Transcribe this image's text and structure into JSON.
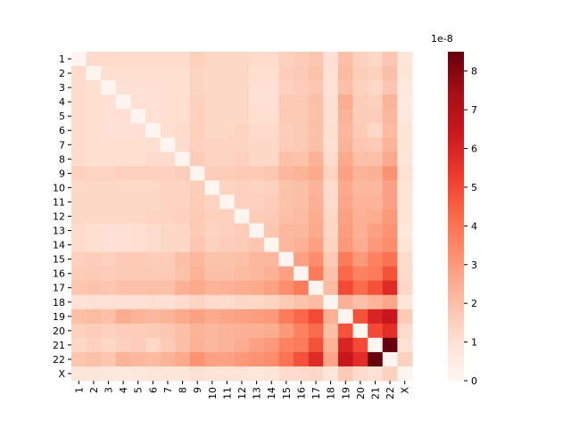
{
  "chart_data": {
    "type": "heatmap",
    "xcategories": [
      "1",
      "2",
      "3",
      "4",
      "5",
      "6",
      "7",
      "8",
      "9",
      "10",
      "11",
      "12",
      "13",
      "14",
      "15",
      "16",
      "17",
      "18",
      "19",
      "20",
      "21",
      "22",
      "X"
    ],
    "ycategories": [
      "1",
      "2",
      "3",
      "4",
      "5",
      "6",
      "7",
      "8",
      "9",
      "10",
      "11",
      "12",
      "13",
      "14",
      "15",
      "16",
      "17",
      "18",
      "19",
      "20",
      "21",
      "22",
      "X"
    ],
    "values": [
      [
        0,
        1.2,
        1.2,
        1.2,
        1.2,
        1.2,
        1.2,
        1.2,
        1.5,
        1.3,
        1.3,
        1.3,
        1.2,
        1.2,
        1.5,
        1.6,
        1.8,
        1.0,
        2.0,
        1.5,
        1.3,
        1.8,
        0.8
      ],
      [
        1.2,
        0,
        1.1,
        1.1,
        1.1,
        1.1,
        1.1,
        1.1,
        1.4,
        1.3,
        1.3,
        1.3,
        1.1,
        1.1,
        1.6,
        1.7,
        1.9,
        1.0,
        2.1,
        1.6,
        1.5,
        2.0,
        0.8
      ],
      [
        1.2,
        1.1,
        0,
        1.0,
        1.0,
        1.0,
        1.1,
        1.1,
        1.4,
        1.3,
        1.3,
        1.3,
        1.0,
        1.0,
        1.5,
        1.6,
        1.8,
        1.0,
        2.0,
        1.5,
        1.3,
        1.8,
        0.7
      ],
      [
        1.2,
        1.1,
        1.0,
        0,
        1.0,
        1.0,
        1.1,
        1.1,
        1.5,
        1.3,
        1.3,
        1.3,
        1.0,
        1.0,
        1.7,
        1.7,
        2.0,
        1.0,
        2.5,
        1.6,
        1.5,
        2.3,
        0.6
      ],
      [
        1.2,
        1.1,
        1.0,
        1.0,
        0,
        1.0,
        1.1,
        1.1,
        1.5,
        1.3,
        1.3,
        1.3,
        1.1,
        1.1,
        1.7,
        1.7,
        2.0,
        1.0,
        2.3,
        1.6,
        1.6,
        2.2,
        0.7
      ],
      [
        1.2,
        1.1,
        1.0,
        1.0,
        1.0,
        0,
        1.1,
        1.2,
        1.5,
        1.3,
        1.3,
        1.4,
        1.2,
        1.2,
        1.6,
        1.7,
        2.0,
        1.1,
        2.2,
        1.7,
        1.3,
        2.1,
        0.8
      ],
      [
        1.2,
        1.1,
        1.1,
        1.1,
        1.1,
        1.1,
        0,
        1.2,
        1.5,
        1.4,
        1.4,
        1.4,
        1.3,
        1.3,
        1.6,
        1.7,
        2.0,
        1.0,
        2.3,
        1.8,
        1.7,
        2.3,
        0.8
      ],
      [
        1.2,
        1.1,
        1.1,
        1.1,
        1.1,
        1.2,
        1.2,
        0,
        1.6,
        1.4,
        1.4,
        1.5,
        1.3,
        1.3,
        2.0,
        1.9,
        2.4,
        1.2,
        2.6,
        2.0,
        2.0,
        2.6,
        0.8
      ],
      [
        1.5,
        1.4,
        1.4,
        1.5,
        1.5,
        1.5,
        1.5,
        1.6,
        0,
        1.6,
        1.6,
        1.7,
        1.7,
        1.8,
        2.2,
        2.3,
        2.6,
        1.4,
        2.8,
        2.3,
        2.4,
        3.2,
        1.0
      ],
      [
        1.3,
        1.3,
        1.3,
        1.3,
        1.3,
        1.3,
        1.4,
        1.4,
        1.6,
        0,
        1.4,
        1.5,
        1.4,
        1.5,
        1.9,
        2.0,
        2.3,
        1.2,
        2.6,
        2.2,
        2.2,
        2.8,
        0.9
      ],
      [
        1.3,
        1.3,
        1.3,
        1.3,
        1.3,
        1.3,
        1.4,
        1.4,
        1.6,
        1.4,
        0,
        1.5,
        1.5,
        1.6,
        1.9,
        2.0,
        2.4,
        1.2,
        2.7,
        2.3,
        2.3,
        2.8,
        0.9
      ],
      [
        1.3,
        1.3,
        1.3,
        1.3,
        1.3,
        1.4,
        1.4,
        1.5,
        1.7,
        1.5,
        1.5,
        0,
        1.6,
        1.7,
        2.0,
        2.1,
        2.5,
        1.3,
        2.8,
        2.4,
        2.5,
        3.0,
        0.9
      ],
      [
        1.2,
        1.1,
        1.0,
        1.0,
        1.1,
        1.2,
        1.3,
        1.3,
        1.7,
        1.4,
        1.5,
        1.6,
        0,
        1.8,
        2.2,
        2.2,
        2.6,
        1.3,
        2.9,
        2.4,
        2.8,
        3.2,
        0.7
      ],
      [
        1.2,
        1.1,
        1.0,
        1.0,
        1.1,
        1.2,
        1.3,
        1.3,
        1.8,
        1.5,
        1.6,
        1.7,
        1.8,
        0,
        2.2,
        2.4,
        2.8,
        1.4,
        3.0,
        2.5,
        3.0,
        3.3,
        0.8
      ],
      [
        1.5,
        1.6,
        1.5,
        1.7,
        1.7,
        1.6,
        1.6,
        2.0,
        2.2,
        1.9,
        1.9,
        2.0,
        2.2,
        2.2,
        0,
        2.8,
        3.3,
        1.7,
        3.8,
        3.0,
        3.6,
        4.0,
        1.2
      ],
      [
        1.6,
        1.7,
        1.6,
        1.7,
        1.7,
        1.7,
        1.7,
        1.9,
        2.3,
        2.0,
        2.0,
        2.1,
        2.2,
        2.4,
        2.8,
        0,
        3.8,
        1.9,
        4.3,
        3.6,
        3.8,
        4.8,
        1.2
      ],
      [
        1.8,
        1.9,
        1.8,
        2.0,
        2.0,
        2.0,
        2.0,
        2.4,
        2.6,
        2.3,
        2.4,
        2.5,
        2.6,
        2.8,
        3.3,
        3.8,
        0,
        2.1,
        5.0,
        4.2,
        4.8,
        5.8,
        1.3
      ],
      [
        1.0,
        1.0,
        1.0,
        1.0,
        1.0,
        1.1,
        1.0,
        1.2,
        1.4,
        1.2,
        1.2,
        1.3,
        1.3,
        1.4,
        1.7,
        1.9,
        2.1,
        0,
        2.4,
        2.0,
        2.3,
        2.7,
        0.8
      ],
      [
        2.0,
        2.1,
        2.0,
        2.5,
        2.3,
        2.2,
        2.3,
        2.6,
        2.8,
        2.6,
        2.7,
        2.8,
        2.9,
        3.0,
        3.8,
        4.3,
        5.0,
        2.4,
        0,
        4.8,
        6.0,
        6.5,
        1.7
      ],
      [
        1.5,
        1.6,
        1.5,
        1.6,
        1.6,
        1.7,
        1.8,
        2.0,
        2.3,
        2.2,
        2.3,
        2.4,
        2.4,
        2.5,
        3.0,
        3.6,
        4.2,
        2.0,
        4.8,
        0,
        5.0,
        5.7,
        1.2
      ],
      [
        1.3,
        1.5,
        1.3,
        1.5,
        1.6,
        1.3,
        1.7,
        2.0,
        2.4,
        2.2,
        2.3,
        2.5,
        2.8,
        3.0,
        3.6,
        3.8,
        4.8,
        2.3,
        6.0,
        5.0,
        0,
        8.5,
        1.0
      ],
      [
        1.8,
        2.0,
        1.8,
        2.3,
        2.2,
        2.1,
        2.3,
        2.6,
        3.2,
        2.8,
        2.8,
        3.0,
        3.2,
        3.3,
        4.0,
        4.8,
        5.8,
        2.7,
        6.5,
        5.7,
        8.5,
        0,
        1.5
      ],
      [
        0.8,
        0.8,
        0.7,
        0.6,
        0.7,
        0.8,
        0.8,
        0.8,
        1.0,
        0.9,
        0.9,
        0.9,
        0.7,
        0.8,
        1.2,
        1.2,
        1.3,
        0.8,
        1.7,
        1.2,
        1.0,
        1.5,
        0
      ]
    ],
    "zlim": [
      0,
      8.5
    ],
    "zticks": [
      0,
      1,
      2,
      3,
      4,
      5,
      6,
      7,
      8
    ],
    "colorbar_offset": "1e-8",
    "colormap": [
      "#fff5f0",
      "#fee0d2",
      "#fcbba1",
      "#fc9272",
      "#fb6a4a",
      "#ef3b2c",
      "#cb181d",
      "#a50f15",
      "#67000d"
    ]
  }
}
